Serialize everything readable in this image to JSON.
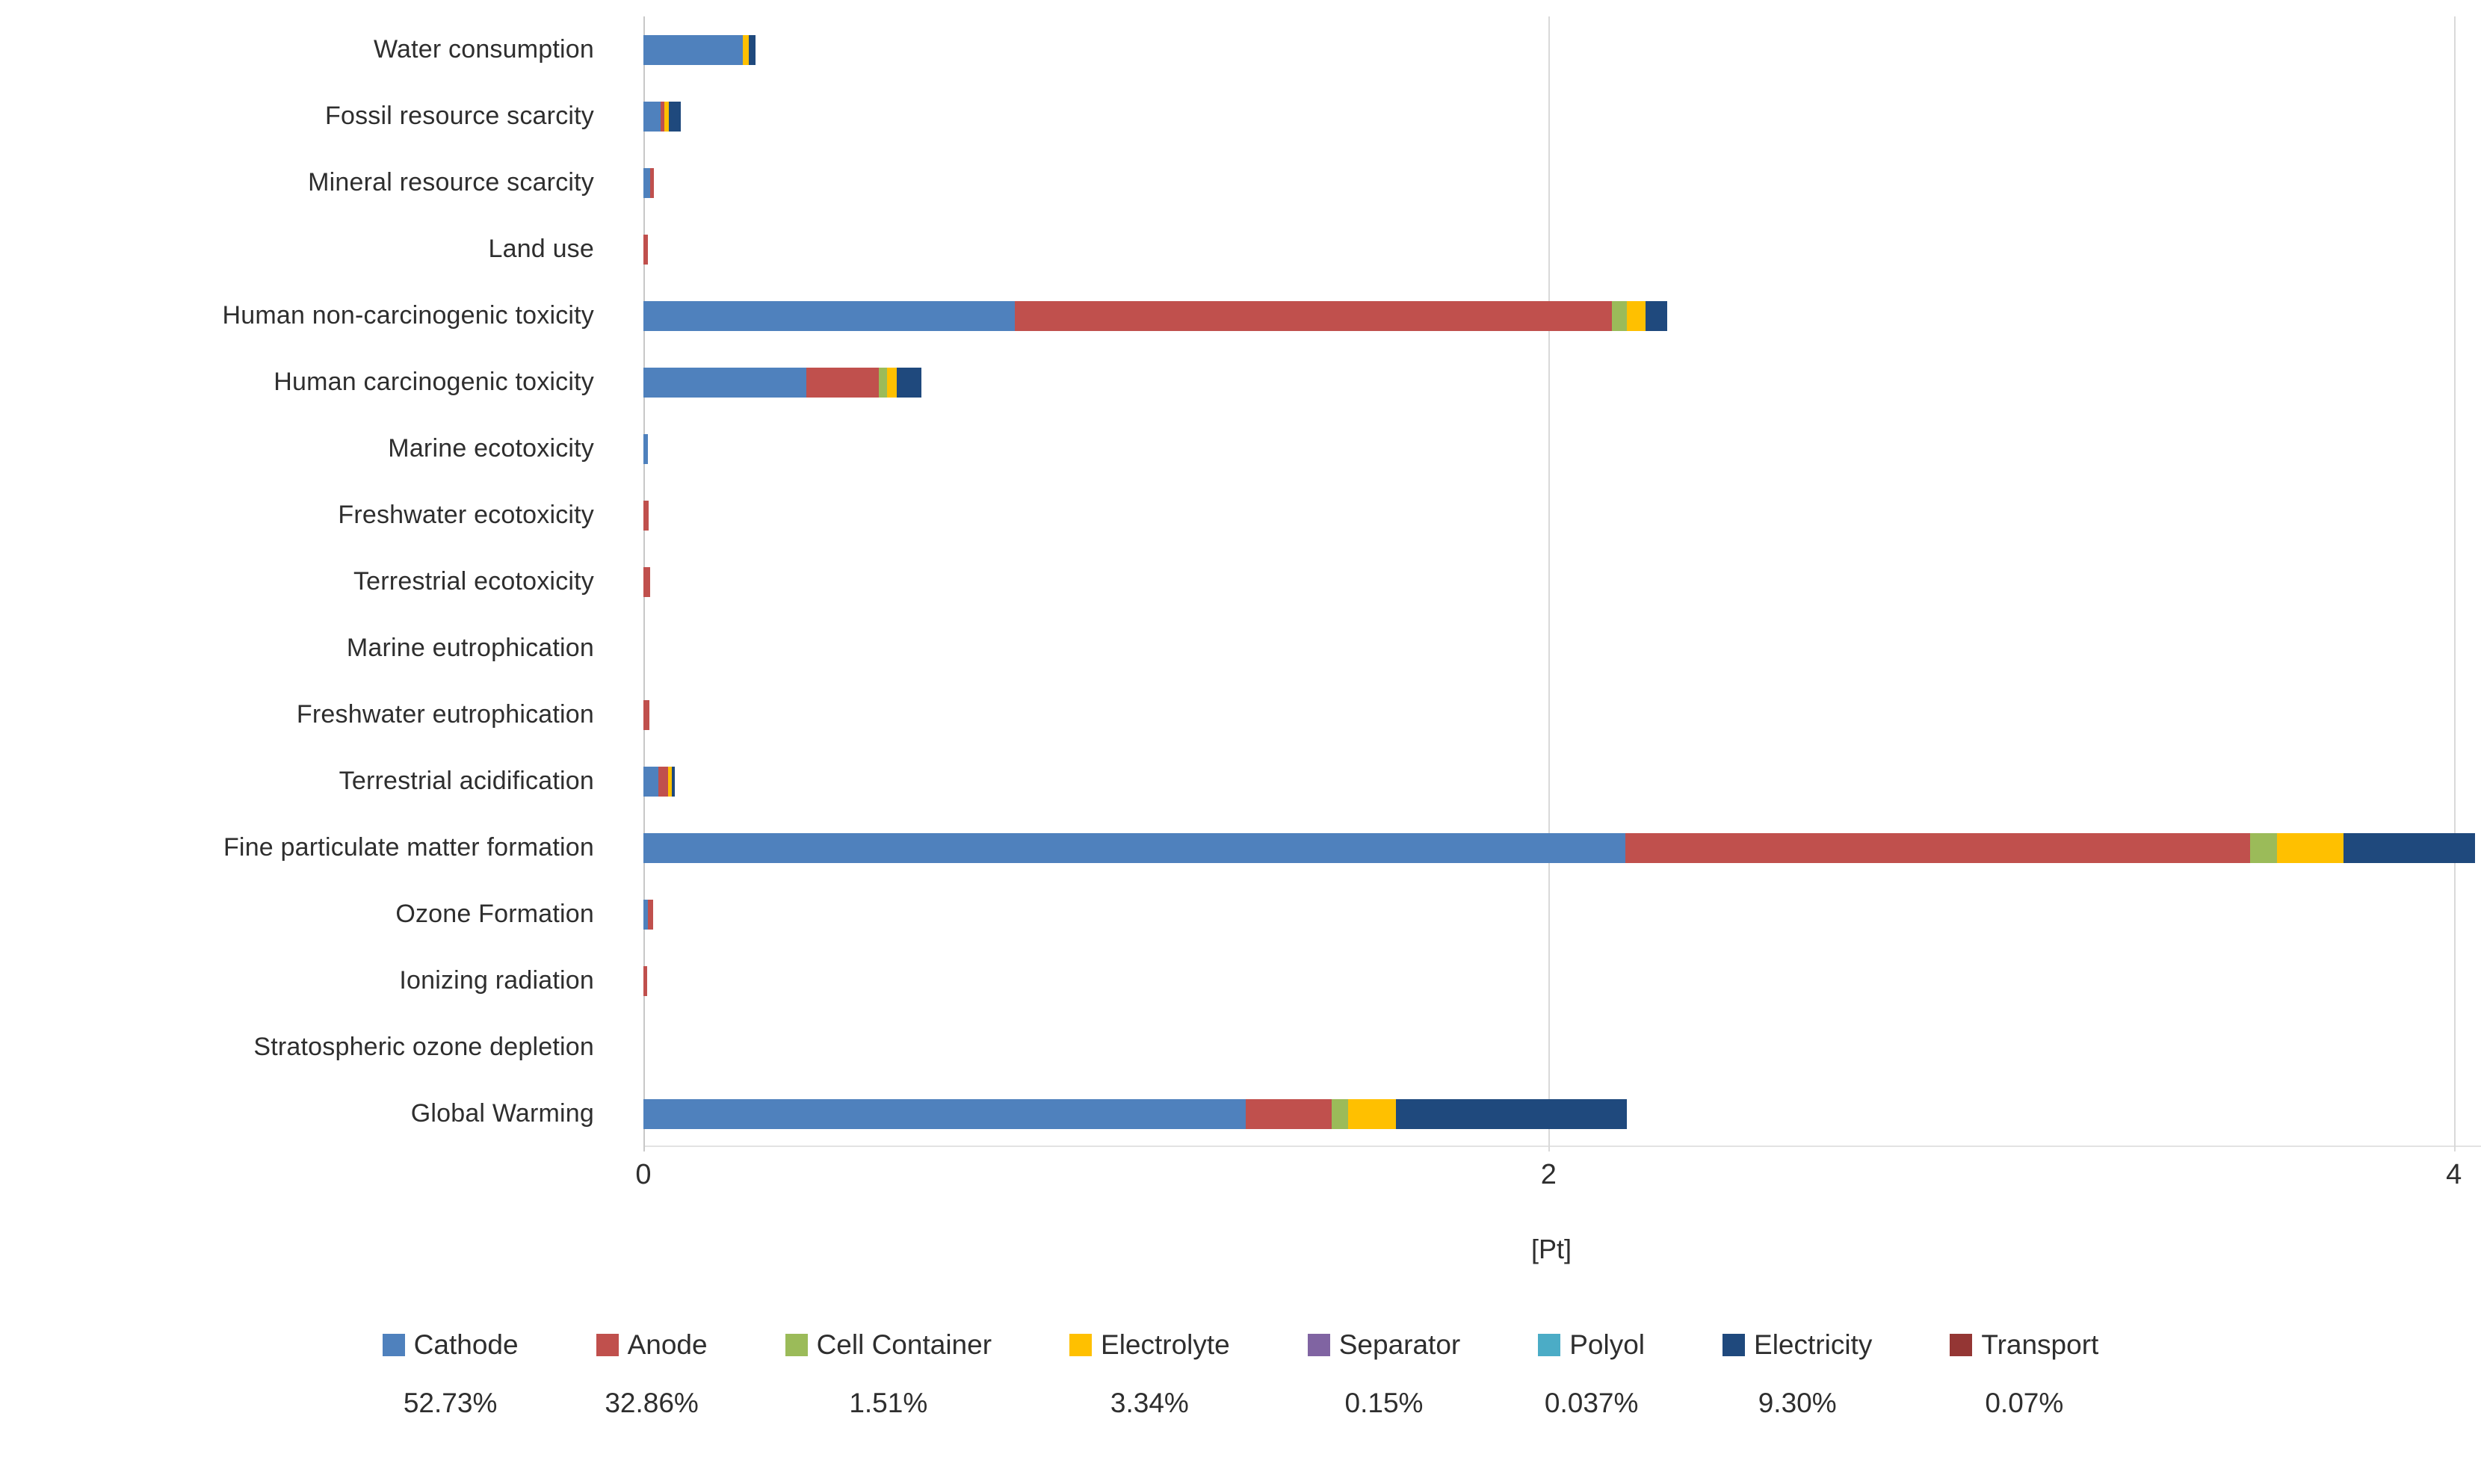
{
  "chart_data": {
    "type": "bar",
    "orientation": "horizontal-stacked",
    "title": "",
    "xlabel": "[Pt]",
    "ylabel": "",
    "xlim": [
      0,
      4.06
    ],
    "xticks": [
      0,
      2,
      4
    ],
    "grid": "vertical-light",
    "legend_position": "bottom",
    "categories": [
      "Water consumption",
      "Fossil resource scarcity",
      "Mineral resource scarcity",
      "Land use",
      "Human non-carcinogenic toxicity",
      "Human carcinogenic toxicity",
      "Marine ecotoxicity",
      "Freshwater ecotoxicity",
      "Terrestrial ecotoxicity",
      "Marine eutrophication",
      "Freshwater eutrophication",
      "Terrestrial acidification",
      "Fine particulate matter formation",
      "Ozone Formation",
      "Ionizing radiation",
      "Stratospheric ozone depletion",
      "Global Warming"
    ],
    "series": [
      {
        "name": "Cathode",
        "percent": "52.73%",
        "color": "#4f81bd",
        "values": [
          0.22,
          0.038,
          0.015,
          0,
          0.82,
          0.36,
          0.01,
          0,
          0,
          0,
          0,
          0.033,
          2.17,
          0.01,
          0,
          0,
          1.33
        ]
      },
      {
        "name": "Anode",
        "percent": "32.86%",
        "color": "#c0504d",
        "values": [
          0,
          0.009,
          0.008,
          0.01,
          1.32,
          0.16,
          0,
          0.012,
          0.015,
          0,
          0.013,
          0.022,
          1.38,
          0.012,
          0.008,
          0,
          0.19
        ]
      },
      {
        "name": "Cell Container",
        "percent": "1.51%",
        "color": "#9bbb59",
        "values": [
          0,
          0,
          0,
          0,
          0.033,
          0.018,
          0,
          0,
          0,
          0,
          0,
          0,
          0.06,
          0,
          0,
          0,
          0.037
        ]
      },
      {
        "name": "Electrolyte",
        "percent": "3.34%",
        "color": "#ffc000",
        "values": [
          0.012,
          0.009,
          0,
          0,
          0.041,
          0.021,
          0,
          0,
          0,
          0,
          0,
          0.007,
          0.147,
          0,
          0,
          0,
          0.106
        ]
      },
      {
        "name": "Separator",
        "percent": "0.15%",
        "color": "#8064a2",
        "values": [
          0,
          0,
          0,
          0,
          0,
          0,
          0,
          0,
          0,
          0,
          0,
          0,
          0,
          0,
          0,
          0,
          0
        ]
      },
      {
        "name": "Polyol",
        "percent": "0.037%",
        "color": "#4bacc6",
        "values": [
          0,
          0,
          0,
          0,
          0,
          0,
          0,
          0,
          0,
          0,
          0,
          0,
          0,
          0,
          0,
          0,
          0
        ]
      },
      {
        "name": "Electricity",
        "percent": "9.30%",
        "color": "#1f497d",
        "values": [
          0.015,
          0.027,
          0,
          0,
          0.048,
          0.055,
          0,
          0,
          0,
          0,
          0,
          0.007,
          0.29,
          0,
          0,
          0,
          0.51
        ]
      },
      {
        "name": "Transport",
        "percent": "0.07%",
        "color": "#943634",
        "values": [
          0,
          0,
          0,
          0,
          0,
          0,
          0,
          0,
          0,
          0,
          0,
          0,
          0,
          0,
          0,
          0,
          0
        ]
      }
    ]
  }
}
